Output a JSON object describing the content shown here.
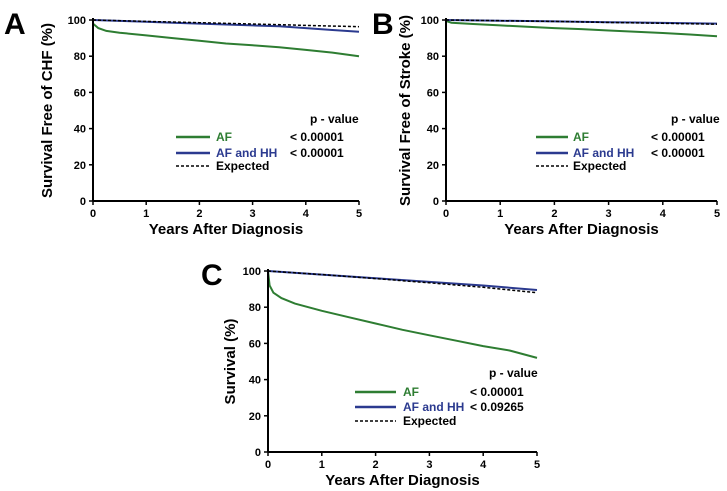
{
  "chart_data": [
    {
      "panel_label": "A",
      "type": "line",
      "xlabel": "Years After Diagnosis",
      "ylabel": "Survival Free of CHF (%)",
      "xlim": [
        0,
        5
      ],
      "ylim": [
        0,
        100
      ],
      "xticks": [
        0,
        1,
        2,
        3,
        4,
        5
      ],
      "yticks": [
        0,
        20,
        40,
        60,
        80,
        100
      ],
      "pvalue_header": "p - value",
      "series": [
        {
          "name": "AF",
          "color": "#2e7d32",
          "style": "solid",
          "x": [
            0,
            0.1,
            0.25,
            0.5,
            1,
            1.5,
            2,
            2.5,
            3,
            3.5,
            4,
            4.5,
            5
          ],
          "y": [
            98,
            95.5,
            94,
            93,
            91.5,
            90,
            88.5,
            87,
            86,
            85,
            83.5,
            82,
            80
          ],
          "pvalue": "< 0.00001"
        },
        {
          "name": "AF and HH",
          "color": "#2b3a8f",
          "style": "solid",
          "x": [
            0,
            0.5,
            1,
            1.5,
            2,
            2.5,
            3,
            3.5,
            4,
            4.5,
            5
          ],
          "y": [
            100,
            99.5,
            99,
            98.5,
            98,
            97.5,
            97,
            96.5,
            95.5,
            94.5,
            93.5
          ],
          "pvalue": "< 0.00001"
        },
        {
          "name": "Expected",
          "color": "#000000",
          "style": "dashed",
          "x": [
            0,
            1,
            2,
            3,
            4,
            5
          ],
          "y": [
            100,
            99.2,
            98.5,
            97.8,
            97,
            96.3
          ],
          "pvalue": ""
        }
      ]
    },
    {
      "panel_label": "B",
      "type": "line",
      "xlabel": "Years After Diagnosis",
      "ylabel": "Survival Free of Stroke (%)",
      "xlim": [
        0,
        5
      ],
      "ylim": [
        0,
        100
      ],
      "xticks": [
        0,
        1,
        2,
        3,
        4,
        5
      ],
      "yticks": [
        0,
        20,
        40,
        60,
        80,
        100
      ],
      "pvalue_header": "p - value",
      "series": [
        {
          "name": "AF",
          "color": "#2e7d32",
          "style": "solid",
          "x": [
            0,
            0.1,
            0.5,
            1,
            1.5,
            2,
            2.5,
            3,
            3.5,
            4,
            4.5,
            5
          ],
          "y": [
            99.5,
            98.5,
            97.8,
            97,
            96.3,
            95.5,
            95,
            94.2,
            93.5,
            92.8,
            92,
            91
          ],
          "pvalue": "< 0.00001"
        },
        {
          "name": "AF and HH",
          "color": "#2b3a8f",
          "style": "solid",
          "x": [
            0,
            1,
            2,
            3,
            4,
            5
          ],
          "y": [
            100,
            99.6,
            99.2,
            98.8,
            98.4,
            98
          ],
          "pvalue": "< 0.00001"
        },
        {
          "name": "Expected",
          "color": "#000000",
          "style": "dashed",
          "x": [
            0,
            1,
            2,
            3,
            4,
            5
          ],
          "y": [
            100,
            99.6,
            99.2,
            98.7,
            98.2,
            97.7
          ],
          "pvalue": ""
        }
      ]
    },
    {
      "panel_label": "C",
      "type": "line",
      "xlabel": "Years After Diagnosis",
      "ylabel": "Survival (%)",
      "xlim": [
        0,
        5
      ],
      "ylim": [
        0,
        100
      ],
      "xticks": [
        0,
        1,
        2,
        3,
        4,
        5
      ],
      "yticks": [
        0,
        20,
        40,
        60,
        80,
        100
      ],
      "pvalue_header": "p - value",
      "series": [
        {
          "name": "AF",
          "color": "#2e7d32",
          "style": "solid",
          "x": [
            0,
            0.03,
            0.1,
            0.25,
            0.5,
            1,
            1.5,
            2,
            2.5,
            3,
            3.5,
            4,
            4.5,
            5
          ],
          "y": [
            100,
            92,
            88,
            85,
            82,
            78,
            74.5,
            71,
            67.5,
            64.5,
            61.5,
            58.5,
            56,
            52
          ],
          "pvalue": "< 0.00001"
        },
        {
          "name": "AF and HH",
          "color": "#2b3a8f",
          "style": "solid",
          "x": [
            0,
            1,
            2,
            3,
            4,
            5
          ],
          "y": [
            100,
            98,
            96,
            94,
            92,
            89.5
          ],
          "pvalue": "< 0.09265"
        },
        {
          "name": "Expected",
          "color": "#000000",
          "style": "dashed",
          "x": [
            0,
            1,
            2,
            3,
            4,
            5
          ],
          "y": [
            100,
            98,
            95.8,
            93.5,
            91,
            88
          ],
          "pvalue": ""
        }
      ]
    }
  ]
}
